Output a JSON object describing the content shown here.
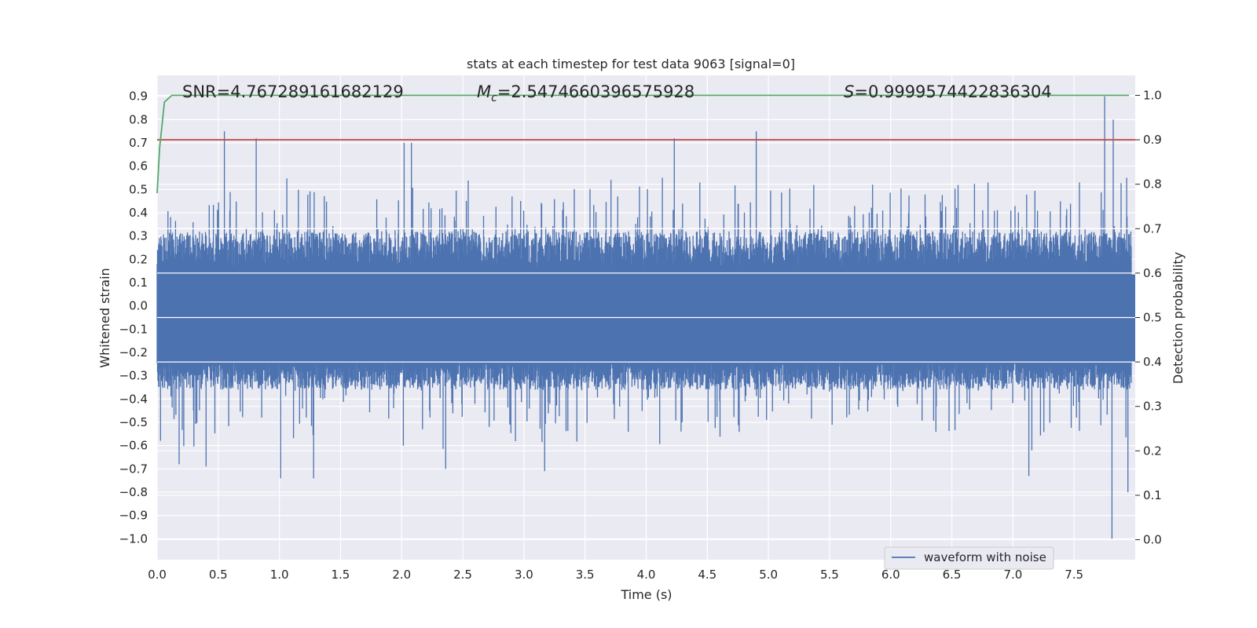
{
  "chart_data": {
    "type": "line",
    "title": "stats at each timestep for test data 9063 [signal=0]",
    "xlabel": "Time (s)",
    "ylabel_left": "Whitened strain",
    "ylabel_right": "Detection probability",
    "xlim": [
      0.0,
      8.0
    ],
    "ylim_left": [
      -1.09,
      0.99
    ],
    "ylim_right": [
      -0.045,
      1.045
    ],
    "x_ticks": [
      "0.0",
      "0.5",
      "1.0",
      "1.5",
      "2.0",
      "2.5",
      "3.0",
      "3.5",
      "4.0",
      "4.5",
      "5.0",
      "5.5",
      "6.0",
      "6.5",
      "7.0",
      "7.5"
    ],
    "y_left_ticks": [
      "0.9",
      "0.8",
      "0.7",
      "0.6",
      "0.5",
      "0.4",
      "0.3",
      "0.2",
      "0.1",
      "0.0",
      "−0.1",
      "−0.2",
      "−0.3",
      "−0.4",
      "−0.5",
      "−0.6",
      "−0.7",
      "−0.8",
      "−0.9",
      "−1.0"
    ],
    "y_right_ticks": [
      "1.0",
      "0.9",
      "0.8",
      "0.7",
      "0.6",
      "0.5",
      "0.4",
      "0.3",
      "0.2",
      "0.1",
      "0.0"
    ],
    "annotations": {
      "snr_prefix": "SNR=",
      "snr_value": "4.767289161682129",
      "mc_symbol": "M",
      "mc_subscript": "c",
      "mc_value": "=2.5474660396575928",
      "s_symbol": "S",
      "s_value": "=0.9999574422836304"
    },
    "threshold": 0.9,
    "legend": {
      "label": "waveform with noise",
      "position": "lower-right"
    },
    "colors": {
      "waveform": "#4c72b0",
      "probability": "#55a868",
      "threshold": "#c44e52",
      "background": "#eaeaf2",
      "grid": "#ffffff"
    },
    "series": [
      {
        "name": "waveform with noise",
        "axis": "left",
        "spikes": [
          {
            "t": 0.55,
            "v": 0.75
          },
          {
            "t": 0.81,
            "v": 0.72
          },
          {
            "t": 2.02,
            "v": 0.7
          },
          {
            "t": 2.08,
            "v": 0.7
          },
          {
            "t": 4.23,
            "v": 0.72
          },
          {
            "t": 4.9,
            "v": 0.75
          },
          {
            "t": 7.75,
            "v": 0.9
          },
          {
            "t": 7.82,
            "v": 0.8
          },
          {
            "t": 7.93,
            "v": 0.55
          },
          {
            "t": 0.18,
            "v": -0.68
          },
          {
            "t": 0.4,
            "v": -0.69
          },
          {
            "t": 1.01,
            "v": -0.74
          },
          {
            "t": 1.28,
            "v": -0.74
          },
          {
            "t": 2.36,
            "v": -0.7
          },
          {
            "t": 3.17,
            "v": -0.71
          },
          {
            "t": 7.13,
            "v": -0.73
          },
          {
            "t": 7.81,
            "v": -1.0
          },
          {
            "t": 7.94,
            "v": -0.8
          }
        ]
      },
      {
        "name": "detection probability",
        "axis": "right",
        "x": [
          0.0,
          0.02,
          0.06,
          0.12,
          0.2,
          7.95
        ],
        "y": [
          0.78,
          0.88,
          0.985,
          1.0,
          1.0,
          1.0
        ]
      }
    ]
  }
}
